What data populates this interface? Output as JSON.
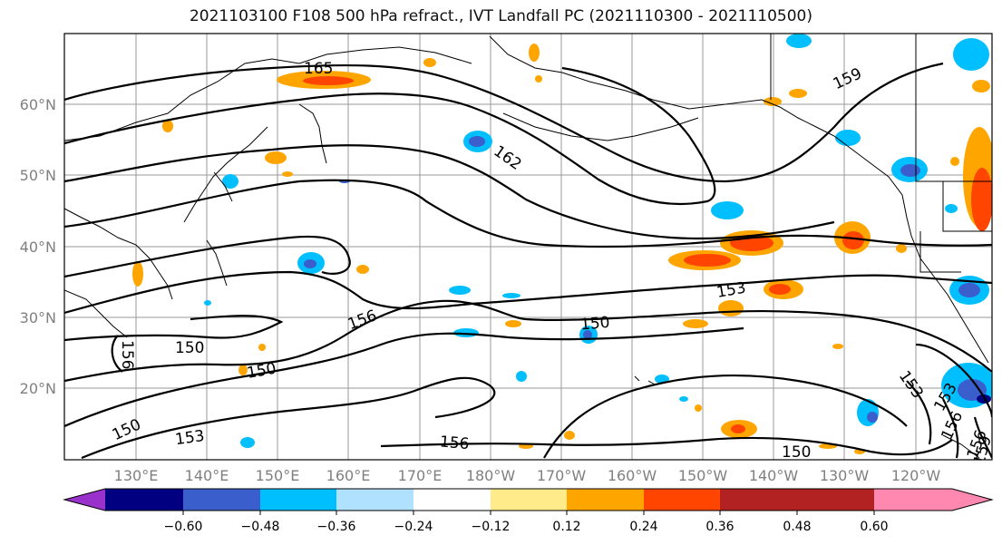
{
  "title": "2021103100 F108 500 hPa refract., IVT Landfall PC (2021110300 - 2021110500)",
  "lat_labels": [
    "60°N",
    "50°N",
    "40°N",
    "30°N",
    "20°N"
  ],
  "lon_labels": [
    "130°E",
    "140°E",
    "150°E",
    "160°E",
    "170°E",
    "180°W",
    "170°W",
    "160°W",
    "150°W",
    "140°W",
    "130°W",
    "120°W"
  ],
  "contour_labels": [
    "165",
    "162",
    "159",
    "156",
    "153",
    "150",
    "150",
    "156",
    "150",
    "153",
    "156",
    "150",
    "153",
    "156",
    "150",
    "156",
    "153",
    "159"
  ],
  "colorbar": {
    "colors": [
      "#9932cc",
      "#000080",
      "#3a5fcd",
      "#00bfff",
      "#b0e2ff",
      "#ffffff",
      "#ffeb8a",
      "#ffa500",
      "#ff4500",
      "#b22222",
      "#ff88b0"
    ],
    "tick_labels": [
      "−0.60",
      "−0.48",
      "−0.36",
      "−0.24",
      "−0.12",
      "0.12",
      "0.24",
      "0.36",
      "0.48",
      "0.60"
    ]
  }
}
